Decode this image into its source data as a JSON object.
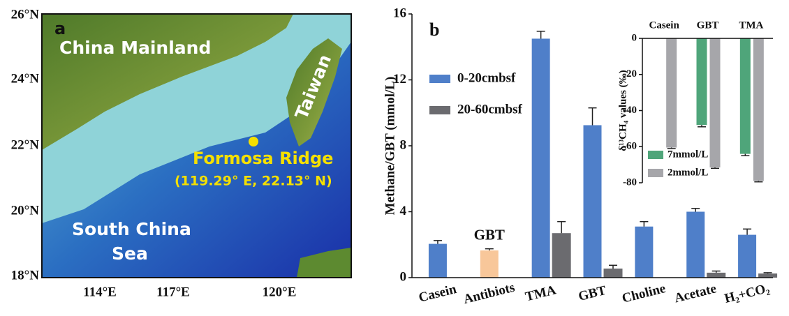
{
  "map": {
    "panel_label": "a",
    "mainland": "China Mainland",
    "island": "Taiwan",
    "site": "Formosa Ridge",
    "site_coords": "(119.29° E, 22.13° N)",
    "sea_line1": "South China",
    "sea_line2": "Sea",
    "lat_ticks": [
      "26°N",
      "24°N",
      "22°N",
      "20°N",
      "18°N"
    ],
    "lon_ticks": [
      "114°E",
      "117°E",
      "120°E"
    ]
  },
  "chart_data": [
    {
      "type": "bar",
      "panel_label": "b",
      "y_label": "Methane/GBT (mmol/L)",
      "categories": [
        "Casein",
        "Antibiots",
        "TMA",
        "GBT",
        "Choline",
        "Acetate",
        "H₂+CO₂"
      ],
      "series": [
        {
          "name": "0-20cmbsf",
          "color": "#4f7fc9",
          "values": [
            2.05,
            null,
            14.5,
            9.25,
            3.1,
            4.0,
            2.6
          ],
          "errors": [
            0.2,
            null,
            0.45,
            1.05,
            0.3,
            0.2,
            0.35
          ]
        },
        {
          "name": "20-60cmbsf",
          "color": "#6b6b6f",
          "values": [
            null,
            null,
            2.7,
            0.55,
            null,
            0.3,
            0.25
          ],
          "errors": [
            null,
            null,
            0.7,
            0.2,
            null,
            0.1,
            0.05
          ]
        }
      ],
      "annotations": [
        {
          "label": "GBT",
          "category": "Antibiots",
          "value": 1.65,
          "error": 0.1,
          "color": "#f8c79a"
        }
      ],
      "ylim": [
        0,
        16
      ],
      "yticks": [
        0,
        4,
        8,
        12,
        16
      ],
      "grid": false,
      "legend": "upper left"
    },
    {
      "type": "bar",
      "y_label": "δ¹³CH₄ values (‰)",
      "categories": [
        "Casein",
        "GBT",
        "TMA"
      ],
      "series": [
        {
          "name": "7mmol/L",
          "color": "#4fa57a",
          "values": [
            null,
            -48,
            -64
          ],
          "errors": [
            null,
            1,
            1
          ]
        },
        {
          "name": "2mmol/L",
          "color": "#a6a6aa",
          "values": [
            -60.5,
            -71.5,
            -79
          ],
          "errors": [
            0.5,
            0.5,
            0.5
          ]
        }
      ],
      "ylim": [
        -80,
        0
      ],
      "yticks": [
        0,
        -20,
        -40,
        -60,
        -80
      ],
      "grid": false,
      "legend": "lower left"
    }
  ]
}
